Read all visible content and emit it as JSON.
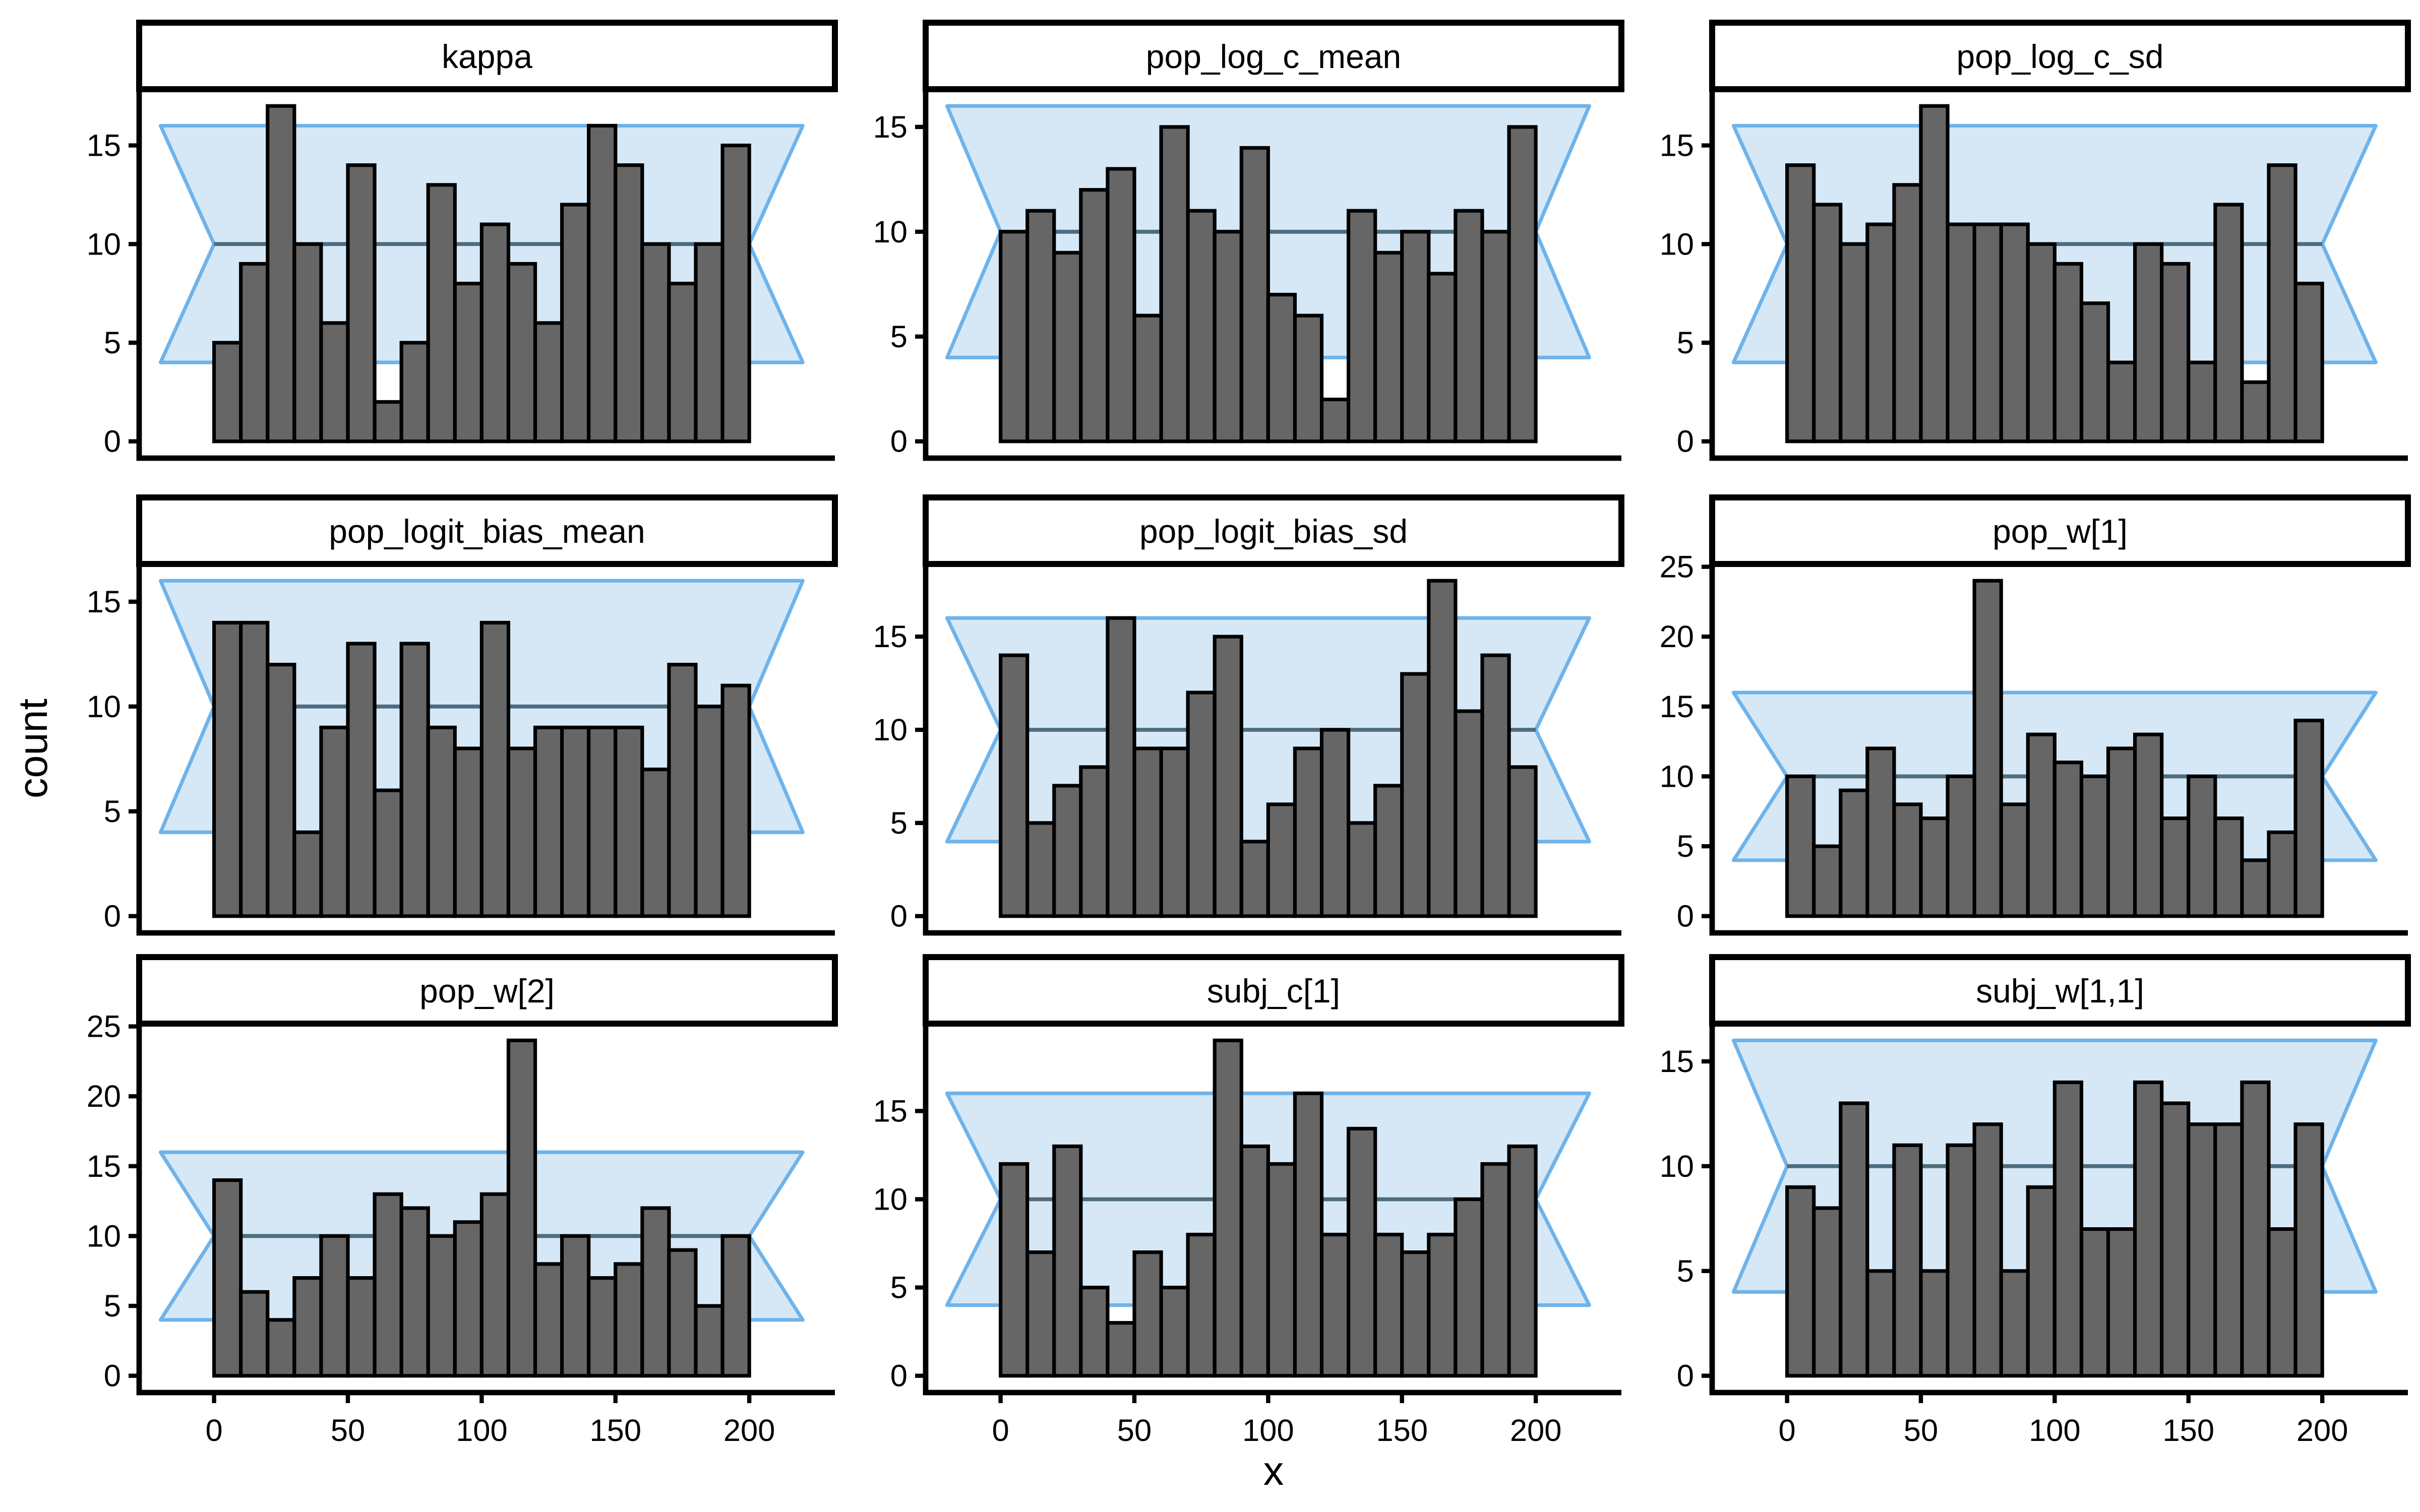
{
  "figure": {
    "xlabel": "x",
    "ylabel": "count",
    "background": "#ffffff",
    "colors": {
      "bar_fill": "#666666",
      "bar_stroke": "#000000",
      "band_fill": "#d6e8f6",
      "band_stroke": "#6fb3ea",
      "mid_line": "#4e6d7f",
      "axis": "#000000",
      "strip_fill": "#ffffff",
      "strip_stroke": "#000000",
      "text": "#000000"
    }
  },
  "chart_data": {
    "type": "bar",
    "subtype": "rank-histogram-facet-grid",
    "grid": {
      "rows": 3,
      "cols": 3
    },
    "xlabel": "x",
    "ylabel": "count",
    "x_bins": {
      "start": 0,
      "width": 10,
      "count": 20
    },
    "xlim": [
      -28,
      232
    ],
    "x_ticks": [
      0,
      50,
      100,
      150,
      200
    ],
    "x_ticks_shown_on": "bottom-row-only",
    "band": {
      "shape": "rectangle-with-inward-notches",
      "xmin": -20,
      "xmax": 220,
      "notch_left": 0,
      "notch_right": 200,
      "ymin": 4,
      "ymax": 16,
      "mid": 10
    },
    "panels": [
      {
        "title": "kappa",
        "values": [
          5,
          9,
          17,
          10,
          6,
          14,
          2,
          5,
          13,
          8,
          11,
          9,
          6,
          12,
          16,
          14,
          10,
          8,
          10,
          15
        ],
        "y_ticks": [
          0,
          5,
          10,
          15
        ],
        "ylim": [
          -0.85,
          17.85
        ]
      },
      {
        "title": "pop_log_c_mean",
        "values": [
          10,
          11,
          9,
          12,
          13,
          6,
          15,
          11,
          10,
          14,
          7,
          6,
          2,
          11,
          9,
          10,
          8,
          11,
          10,
          15
        ],
        "y_ticks": [
          0,
          5,
          10,
          15
        ],
        "ylim": [
          -0.8,
          16.8
        ]
      },
      {
        "title": "pop_log_c_sd",
        "values": [
          14,
          12,
          10,
          11,
          13,
          17,
          11,
          11,
          11,
          10,
          9,
          7,
          4,
          10,
          9,
          4,
          12,
          3,
          14,
          8
        ],
        "y_ticks": [
          0,
          5,
          10,
          15
        ],
        "ylim": [
          -0.85,
          17.85
        ]
      },
      {
        "title": "pop_logit_bias_mean",
        "values": [
          14,
          14,
          12,
          4,
          9,
          13,
          6,
          13,
          9,
          8,
          14,
          8,
          9,
          9,
          9,
          9,
          7,
          12,
          10,
          11
        ],
        "y_ticks": [
          0,
          5,
          10,
          15
        ],
        "ylim": [
          -0.8,
          16.8
        ]
      },
      {
        "title": "pop_logit_bias_sd",
        "values": [
          14,
          5,
          7,
          8,
          16,
          9,
          9,
          12,
          15,
          4,
          6,
          9,
          10,
          5,
          7,
          13,
          18,
          11,
          14,
          8
        ],
        "y_ticks": [
          0,
          5,
          10,
          15
        ],
        "ylim": [
          -0.9,
          18.9
        ]
      },
      {
        "title": "pop_w[1]",
        "values": [
          10,
          5,
          9,
          12,
          8,
          7,
          10,
          24,
          8,
          13,
          11,
          10,
          12,
          13,
          7,
          10,
          7,
          4,
          6,
          14
        ],
        "y_ticks": [
          0,
          5,
          10,
          15,
          20,
          25
        ],
        "ylim": [
          -1.2,
          25.2
        ]
      },
      {
        "title": "pop_w[2]",
        "values": [
          14,
          6,
          4,
          7,
          10,
          7,
          13,
          12,
          10,
          11,
          13,
          24,
          8,
          10,
          7,
          8,
          12,
          9,
          5,
          10
        ],
        "y_ticks": [
          0,
          5,
          10,
          15,
          20,
          25
        ],
        "ylim": [
          -1.2,
          25.2
        ]
      },
      {
        "title": "subj_c[1]",
        "values": [
          12,
          7,
          13,
          5,
          3,
          7,
          5,
          8,
          19,
          13,
          12,
          16,
          8,
          14,
          8,
          7,
          8,
          10,
          12,
          13
        ],
        "y_ticks": [
          0,
          5,
          10,
          15
        ],
        "ylim": [
          -0.95,
          19.95
        ]
      },
      {
        "title": "subj_w[1,1]",
        "values": [
          9,
          8,
          13,
          5,
          11,
          5,
          11,
          12,
          5,
          9,
          14,
          7,
          7,
          14,
          13,
          12,
          12,
          14,
          7,
          12
        ],
        "y_ticks": [
          0,
          5,
          10,
          15
        ],
        "ylim": [
          -0.8,
          16.8
        ]
      }
    ]
  }
}
